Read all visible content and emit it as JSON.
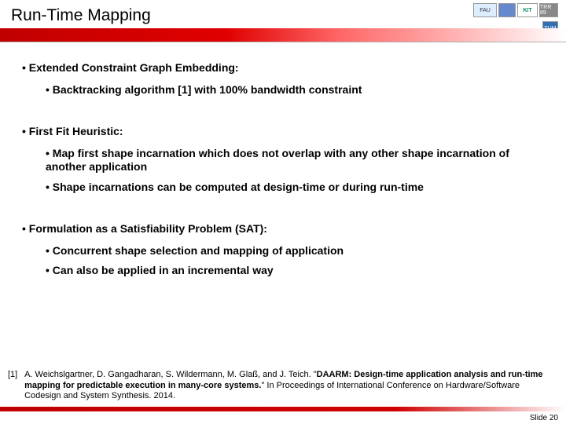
{
  "header": {
    "title": "Run-Time Mapping",
    "logos": {
      "fau": "FAU",
      "kit": "KIT",
      "trr": "TRR 89",
      "tum": "TUM"
    }
  },
  "content": {
    "section1": {
      "head": "Extended Constraint Graph Embedding:",
      "sub1": "Backtracking algorithm [1] with 100% bandwidth constraint"
    },
    "section2": {
      "head": "First Fit Heuristic:",
      "sub1": "Map first shape incarnation which does not overlap with any other shape incarnation of another application",
      "sub2": "Shape incarnations can be computed at design-time or during run-time"
    },
    "section3": {
      "head": "Formulation as a Satisfiability Problem (SAT):",
      "sub1": "Concurrent shape selection and mapping of  application",
      "sub2": "Can also be applied in an incremental way"
    }
  },
  "footnote": {
    "ref": "[1]",
    "line1": "A. Weichslgartner, D. Gangadharan, S. Wildermann, M. Glaß, and J. Teich. \"",
    "bold": "DAARM: Design-time application analysis and run-time mapping for predictable execution in many-core systems.",
    "line2": "\" In Proceedings of International Conference on Hardware/Software Codesign and System Synthesis. 2014."
  },
  "footer": {
    "slide": "Slide 20"
  },
  "colors": {
    "accent": "#c00000",
    "text": "#000000",
    "bg": "#ffffff"
  }
}
